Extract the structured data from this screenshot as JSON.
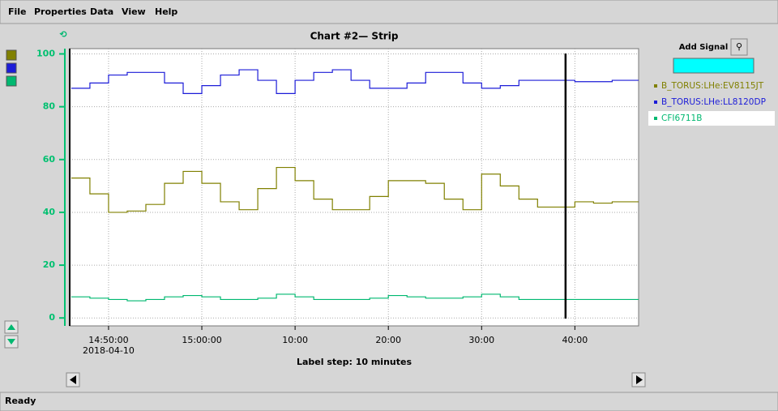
{
  "menu": [
    "File",
    "Properties",
    "Data",
    "View",
    "Help"
  ],
  "chart_data": {
    "type": "line",
    "step": true,
    "title": "Chart #2— Strip",
    "x_label": "Label step: 10 minutes",
    "x_date_label": "2018-04-10",
    "x": [
      "2018-04-10T14:46:00",
      "2018-04-10T14:48:00",
      "2018-04-10T14:50:00",
      "2018-04-10T14:52:00",
      "2018-04-10T14:54:00",
      "2018-04-10T14:56:00",
      "2018-04-10T14:58:00",
      "2018-04-10T15:00:00",
      "2018-04-10T15:02:00",
      "2018-04-10T15:04:00",
      "2018-04-10T15:06:00",
      "2018-04-10T15:08:00",
      "2018-04-10T15:10:00",
      "2018-04-10T15:12:00",
      "2018-04-10T15:14:00",
      "2018-04-10T15:16:00",
      "2018-04-10T15:18:00",
      "2018-04-10T15:20:00",
      "2018-04-10T15:22:00",
      "2018-04-10T15:24:00",
      "2018-04-10T15:26:00",
      "2018-04-10T15:28:00",
      "2018-04-10T15:30:00",
      "2018-04-10T15:32:00",
      "2018-04-10T15:34:00",
      "2018-04-10T15:36:00",
      "2018-04-10T15:38:00",
      "2018-04-10T15:40:00",
      "2018-04-10T15:42:00",
      "2018-04-10T15:44:00",
      "2018-04-10T15:46:00"
    ],
    "series": [
      {
        "name": "B_TORUS:LHe:EV8115JT",
        "color": "#808000",
        "values": [
          53,
          47,
          40,
          40.5,
          43,
          51,
          55.5,
          51,
          44,
          41,
          49,
          57,
          52,
          45,
          41,
          41,
          46,
          52,
          52,
          51,
          45,
          41,
          54.5,
          50,
          45,
          42,
          42,
          44,
          43.5,
          44,
          44
        ]
      },
      {
        "name": "B_TORUS:LHe:LL8120DP",
        "color": "#1c1cd8",
        "values": [
          87,
          89,
          92,
          93,
          93,
          89,
          85,
          88,
          92,
          94,
          90,
          85,
          90,
          93,
          94,
          90,
          87,
          87,
          89,
          93,
          93,
          89,
          87,
          88,
          90,
          90,
          90,
          89.5,
          89.5,
          90,
          90
        ]
      },
      {
        "name": "CFI6711B",
        "color": "#00b870",
        "values": [
          8,
          7.5,
          7,
          6.5,
          7,
          8,
          8.5,
          8,
          7,
          7,
          7.5,
          9,
          8,
          7,
          7,
          7,
          7.5,
          8.5,
          8,
          7.5,
          7.5,
          8,
          9,
          8,
          7,
          7,
          7,
          7,
          7,
          7,
          7
        ]
      }
    ],
    "ylim": [
      -3,
      102
    ],
    "yticks": [
      0,
      20,
      40,
      60,
      80,
      100
    ],
    "xlim": [
      "2018-04-10T14:45:50",
      "2018-04-10T15:46:50"
    ],
    "xticks": [
      {
        "value": "2018-04-10T14:50:00",
        "label": "14:50:00"
      },
      {
        "value": "2018-04-10T15:00:00",
        "label": "15:00:00"
      },
      {
        "value": "2018-04-10T15:10:00",
        "label": "10:00"
      },
      {
        "value": "2018-04-10T15:20:00",
        "label": "20:00"
      },
      {
        "value": "2018-04-10T15:30:00",
        "label": "30:00"
      },
      {
        "value": "2018-04-10T15:40:00",
        "label": "40:00"
      }
    ],
    "grid": true,
    "cursor_x": "2018-04-10T15:39:00",
    "axis_color": "#00c070"
  },
  "panel": {
    "add_signal": "Add Signal"
  },
  "status": "Ready"
}
